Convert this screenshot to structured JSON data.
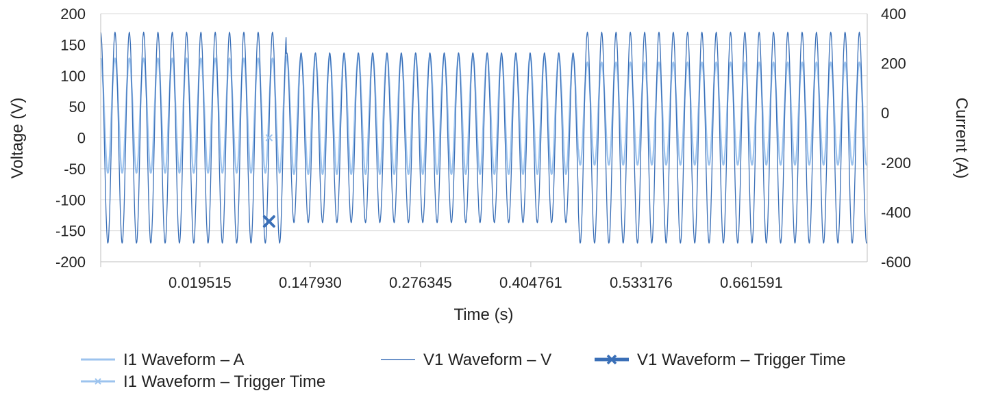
{
  "chart_data": {
    "type": "line",
    "title": "",
    "xlabel": "Time (s)",
    "ylabel": "Voltage (V)",
    "y2label": "Current (A)",
    "x_ticks": [
      "0.019515",
      "0.147930",
      "0.276345",
      "0.404761",
      "0.533176",
      "0.661591"
    ],
    "ylim": [
      -200,
      200
    ],
    "y_ticks": [
      "200",
      "150",
      "100",
      "50",
      "0",
      "-50",
      "-100",
      "-150",
      "-200"
    ],
    "y2lim": [
      -600,
      400
    ],
    "y2_ticks": [
      "400",
      "200",
      "0",
      "-200",
      "-400",
      "-600"
    ],
    "grid": true,
    "legend_position": "bottom",
    "colors": {
      "current": "#9cc3ee",
      "voltage": "#3a6fb7",
      "trigger": "#3a6fb7",
      "grid": "#d9d9d9"
    },
    "series": [
      {
        "name": "I1 Waveform – A",
        "axis": "right",
        "frequency_hz": 60,
        "segments": [
          {
            "from": "0.019515",
            "to": "0.120",
            "peak": 220,
            "trough": -242
          },
          {
            "from": "0.120",
            "to": "0.460",
            "peak": 230,
            "trough": -247
          },
          {
            "from": "0.460",
            "to": "0.797",
            "peak": 204,
            "trough": -210
          }
        ]
      },
      {
        "name": "V1 Waveform – V",
        "axis": "left",
        "frequency_hz": 60,
        "segments": [
          {
            "from": "0.019515",
            "to": "0.120",
            "amplitude": 170
          },
          {
            "from": "0.120",
            "to": "0.460",
            "amplitude": 137
          },
          {
            "from": "0.460",
            "to": "0.797",
            "amplitude": 170
          }
        ]
      },
      {
        "name": "V1 Waveform – Trigger Time",
        "axis": "left",
        "marker": "x",
        "points": [
          {
            "x": 0.1,
            "y": -135
          }
        ]
      },
      {
        "name": "I1 Waveform – Trigger Time",
        "axis": "right",
        "marker": "x",
        "points": [
          {
            "x": 0.1,
            "y": -100
          }
        ]
      }
    ]
  }
}
